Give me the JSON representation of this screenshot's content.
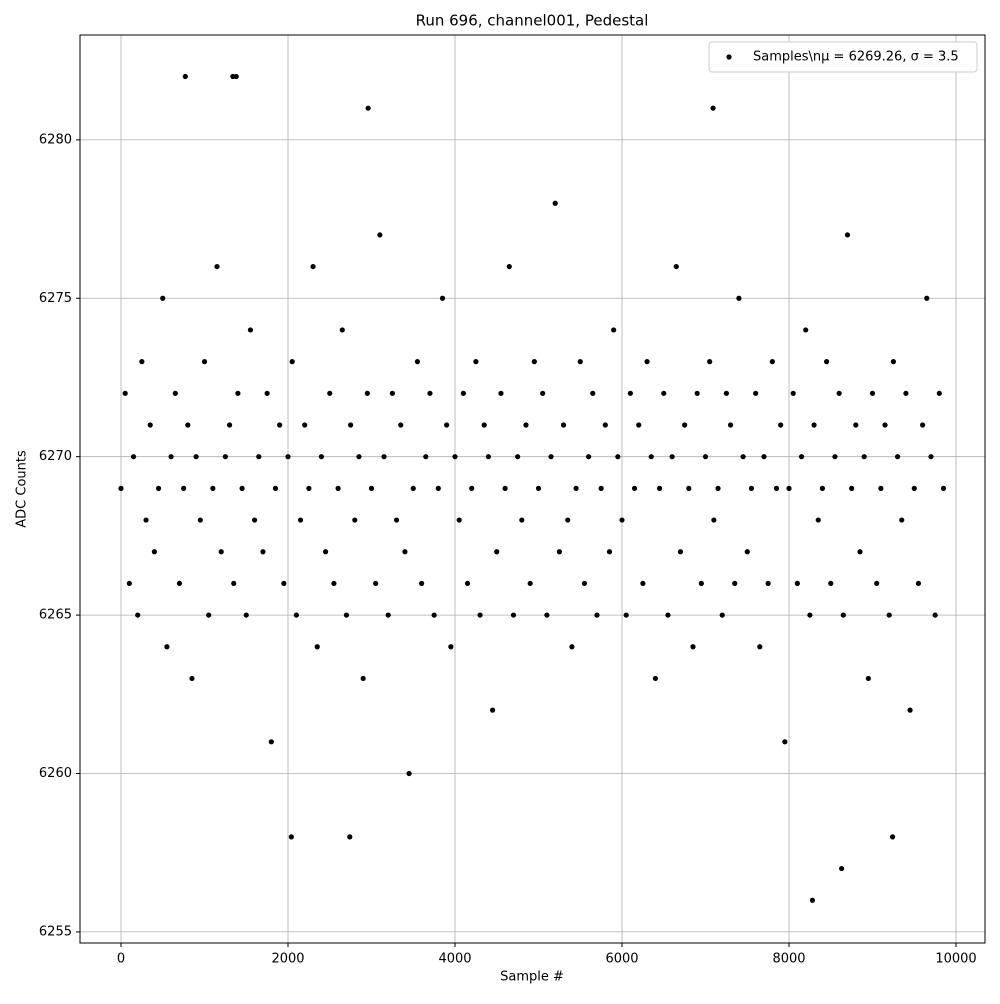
{
  "chart_data": {
    "type": "scatter",
    "title": "Run 696, channel001, Pedestal",
    "xlabel": "Sample #",
    "ylabel": "ADC Counts",
    "xlim": [
      -491,
      10347
    ],
    "ylim": [
      6254.65,
      6283.31
    ],
    "xticks": [
      0,
      2000,
      4000,
      6000,
      8000,
      10000
    ],
    "yticks": [
      6255,
      6260,
      6265,
      6270,
      6275,
      6280
    ],
    "grid": true,
    "legend": "upper right",
    "series": [
      {
        "name": "Samples\\nμ = 6269.26, σ = 3.5",
        "color": "#000000",
        "x": [
          0,
          50,
          100,
          150,
          200,
          250,
          300,
          350,
          400,
          450,
          500,
          550,
          600,
          650,
          700,
          750,
          800,
          850,
          900,
          950,
          1000,
          1050,
          1100,
          1150,
          1200,
          1250,
          1300,
          1350,
          1400,
          1450,
          1500,
          1550,
          1600,
          1650,
          1700,
          1750,
          1800,
          1850,
          1900,
          1950,
          2000,
          2050,
          2100,
          2150,
          2200,
          2250,
          2300,
          2350,
          2400,
          2450,
          2500,
          2550,
          2600,
          2650,
          2700,
          2750,
          2800,
          2850,
          2900,
          2950,
          3000,
          3050,
          3100,
          3150,
          3200,
          3250,
          3300,
          3350,
          3400,
          3450,
          3500,
          3550,
          3600,
          3650,
          3700,
          3750,
          3800,
          3850,
          3900,
          3950,
          4000,
          4050,
          4100,
          4150,
          4200,
          4250,
          4300,
          4350,
          4400,
          4450,
          4500,
          4550,
          4600,
          4650,
          4700,
          4750,
          4800,
          4850,
          4900,
          4950,
          5000,
          5050,
          5100,
          5150,
          5200,
          5250,
          5300,
          5350,
          5400,
          5450,
          5500,
          5550,
          5600,
          5650,
          5700,
          5750,
          5800,
          5850,
          5900,
          5950,
          6000,
          6050,
          6100,
          6150,
          6200,
          6250,
          6300,
          6350,
          6400,
          6450,
          6500,
          6550,
          6600,
          6650,
          6700,
          6750,
          6800,
          6850,
          6900,
          6950,
          7000,
          7050,
          7100,
          7150,
          7200,
          7250,
          7300,
          7350,
          7400,
          7450,
          7500,
          7550,
          7600,
          7650,
          7700,
          7750,
          7800,
          7850,
          7900,
          7950,
          8000,
          8050,
          8100,
          8150,
          8200,
          8250,
          8300,
          8350,
          8400,
          8450,
          8500,
          8550,
          8600,
          8650,
          8700,
          8750,
          8800,
          8850,
          8900,
          8950,
          9000,
          9050,
          9100,
          9150,
          9200,
          9250,
          9300,
          9350,
          9400,
          9450,
          9500,
          9550,
          9600,
          9650,
          9700,
          9750,
          9800,
          9850,
          770,
          1340,
          1380,
          2960,
          7090,
          8280,
          8630,
          2040,
          2740,
          9240
        ],
        "values": [
          6269,
          6272,
          6266,
          6270,
          6265,
          6273,
          6268,
          6271,
          6267,
          6269,
          6275,
          6264,
          6270,
          6272,
          6266,
          6269,
          6271,
          6263,
          6270,
          6268,
          6273,
          6265,
          6269,
          6276,
          6267,
          6270,
          6271,
          6266,
          6272,
          6269,
          6265,
          6274,
          6268,
          6270,
          6267,
          6272,
          6261,
          6269,
          6271,
          6266,
          6270,
          6273,
          6265,
          6268,
          6271,
          6269,
          6276,
          6264,
          6270,
          6267,
          6272,
          6266,
          6269,
          6274,
          6265,
          6271,
          6268,
          6270,
          6263,
          6272,
          6269,
          6266,
          6277,
          6270,
          6265,
          6272,
          6268,
          6271,
          6267,
          6260,
          6269,
          6273,
          6266,
          6270,
          6272,
          6265,
          6269,
          6275,
          6271,
          6264,
          6270,
          6268,
          6272,
          6266,
          6269,
          6273,
          6265,
          6271,
          6270,
          6262,
          6267,
          6272,
          6269,
          6276,
          6265,
          6270,
          6268,
          6271,
          6266,
          6273,
          6269,
          6272,
          6265,
          6270,
          6278,
          6267,
          6271,
          6268,
          6264,
          6269,
          6273,
          6266,
          6270,
          6272,
          6265,
          6269,
          6271,
          6267,
          6274,
          6270,
          6268,
          6265,
          6272,
          6269,
          6271,
          6266,
          6273,
          6270,
          6263,
          6269,
          6272,
          6265,
          6270,
          6276,
          6267,
          6271,
          6269,
          6264,
          6272,
          6266,
          6270,
          6273,
          6268,
          6269,
          6265,
          6272,
          6271,
          6266,
          6275,
          6270,
          6267,
          6269,
          6272,
          6264,
          6270,
          6266,
          6273,
          6269,
          6271,
          6261,
          6269,
          6272,
          6266,
          6270,
          6274,
          6265,
          6271,
          6268,
          6269,
          6273,
          6266,
          6270,
          6272,
          6265,
          6277,
          6269,
          6271,
          6267,
          6270,
          6263,
          6272,
          6266,
          6269,
          6271,
          6265,
          6273,
          6270,
          6268,
          6272,
          6262,
          6269,
          6266,
          6271,
          6275,
          6270,
          6265,
          6272,
          6269,
          6282,
          6282,
          6282,
          6281,
          6281,
          6256,
          6257,
          6258,
          6258,
          6258
        ]
      }
    ]
  }
}
